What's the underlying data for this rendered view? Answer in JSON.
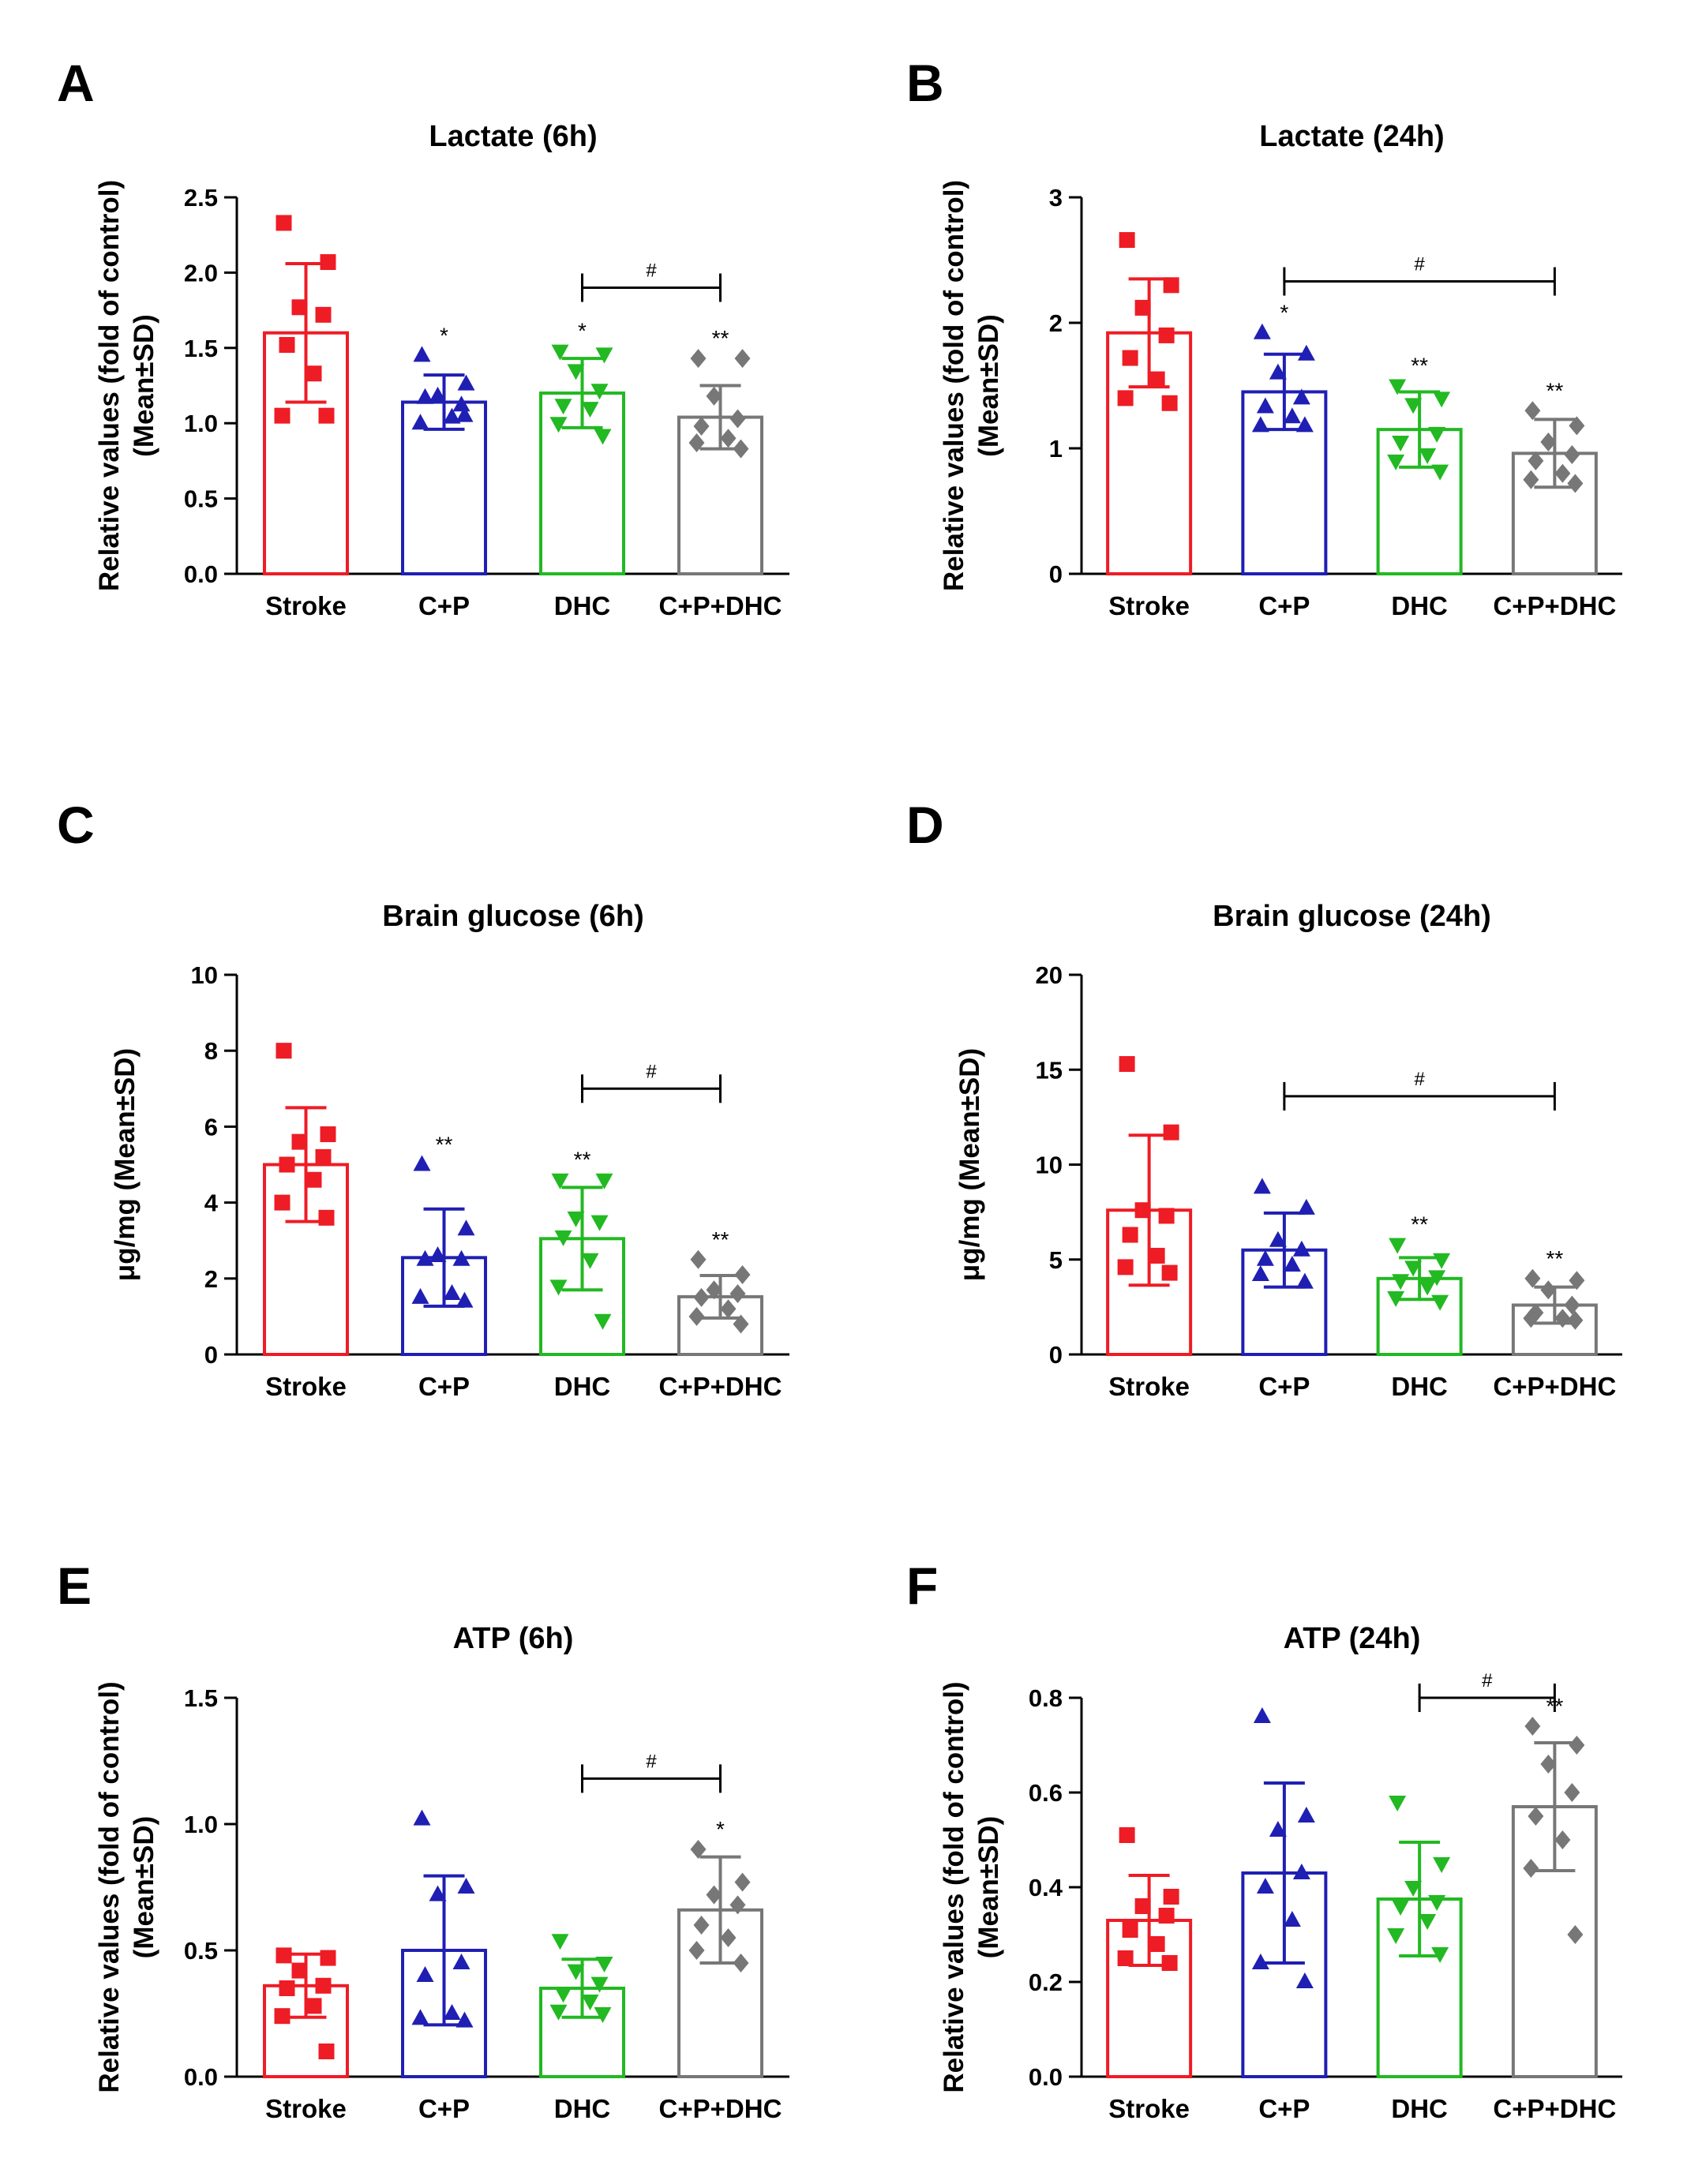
{
  "chart_data": [
    {
      "panel": "A",
      "type": "bar",
      "title": "Lactate (6h)",
      "ylabel": [
        "Relative values (fold of control)",
        "(Mean±SD)"
      ],
      "ylim": [
        0,
        2.5
      ],
      "yticks": [
        "0.0",
        "0.5",
        "1.0",
        "1.5",
        "2.0",
        "2.5"
      ],
      "categories": [
        "Stroke",
        "C+P",
        "DHC",
        "C+P+DHC"
      ],
      "series": [
        {
          "name": "Stroke",
          "color": "#ee1c25",
          "marker": "square",
          "mean": 1.6,
          "sd": 0.46,
          "points": [
            2.33,
            2.07,
            1.77,
            1.72,
            1.52,
            1.33,
            1.05,
            1.05
          ],
          "sig": ""
        },
        {
          "name": "C+P",
          "color": "#1f1fb4",
          "marker": "triangle",
          "mean": 1.14,
          "sd": 0.18,
          "points": [
            1.45,
            1.26,
            1.18,
            1.12,
            1.17,
            1.04,
            1.0,
            1.05
          ],
          "sig": "*"
        },
        {
          "name": "DHC",
          "color": "#22b922",
          "marker": "triangle-down",
          "mean": 1.2,
          "sd": 0.23,
          "points": [
            1.48,
            1.46,
            1.35,
            1.22,
            1.12,
            1.1,
            1.0,
            0.92
          ],
          "sig": "*"
        },
        {
          "name": "C+P+DHC",
          "color": "#777777",
          "marker": "diamond",
          "mean": 1.04,
          "sd": 0.21,
          "points": [
            1.43,
            1.43,
            1.18,
            1.03,
            0.98,
            0.9,
            0.87,
            0.83
          ],
          "sig": "**"
        }
      ],
      "bracket": {
        "from": "DHC",
        "to": "C+P+DHC",
        "y": 1.9,
        "label": "#"
      }
    },
    {
      "panel": "B",
      "type": "bar",
      "title": "Lactate (24h)",
      "ylabel": [
        "Relative values (fold of control)",
        "(Mean±SD)"
      ],
      "ylim": [
        0,
        3
      ],
      "yticks": [
        "0",
        "1",
        "2",
        "3"
      ],
      "categories": [
        "Stroke",
        "C+P",
        "DHC",
        "C+P+DHC"
      ],
      "series": [
        {
          "name": "Stroke",
          "color": "#ee1c25",
          "marker": "square",
          "mean": 1.92,
          "sd": 0.43,
          "points": [
            2.66,
            2.3,
            2.12,
            1.9,
            1.72,
            1.55,
            1.4,
            1.36
          ],
          "sig": ""
        },
        {
          "name": "C+P",
          "color": "#1f1fb4",
          "marker": "triangle",
          "mean": 1.45,
          "sd": 0.3,
          "points": [
            1.92,
            1.75,
            1.6,
            1.4,
            1.33,
            1.25,
            1.18,
            1.18
          ],
          "sig": "*"
        },
        {
          "name": "DHC",
          "color": "#22b922",
          "marker": "triangle-down",
          "mean": 1.15,
          "sd": 0.3,
          "points": [
            1.5,
            1.4,
            1.35,
            1.12,
            1.05,
            0.95,
            0.9,
            0.82
          ],
          "sig": "**"
        },
        {
          "name": "C+P+DHC",
          "color": "#777777",
          "marker": "diamond",
          "mean": 0.96,
          "sd": 0.27,
          "points": [
            1.3,
            1.18,
            1.05,
            0.95,
            0.9,
            0.8,
            0.75,
            0.72
          ],
          "sig": "**"
        }
      ],
      "bracket": {
        "from": "C+P",
        "to": "C+P+DHC",
        "y": 2.33,
        "label": "#"
      }
    },
    {
      "panel": "C",
      "type": "bar",
      "title": "Brain glucose (6h)",
      "ylabel": [
        "μg/mg (Mean±SD)"
      ],
      "ylim": [
        0,
        10
      ],
      "yticks": [
        "0",
        "2",
        "4",
        "6",
        "8",
        "10"
      ],
      "categories": [
        "Stroke",
        "C+P",
        "DHC",
        "C+P+DHC"
      ],
      "series": [
        {
          "name": "Stroke",
          "color": "#ee1c25",
          "marker": "square",
          "mean": 5.0,
          "sd": 1.5,
          "points": [
            8.0,
            5.8,
            5.6,
            5.2,
            5.0,
            4.6,
            4.0,
            3.6
          ],
          "sig": ""
        },
        {
          "name": "C+P",
          "color": "#1f1fb4",
          "marker": "triangle",
          "mean": 2.55,
          "sd": 1.28,
          "points": [
            5.0,
            3.3,
            2.6,
            2.5,
            2.5,
            1.6,
            1.5,
            1.4
          ],
          "sig": "**"
        },
        {
          "name": "DHC",
          "color": "#22b922",
          "marker": "triangle-down",
          "mean": 3.05,
          "sd": 1.35,
          "points": [
            4.6,
            4.6,
            3.6,
            3.5,
            3.1,
            2.5,
            1.8,
            0.9
          ],
          "sig": "**"
        },
        {
          "name": "C+P+DHC",
          "color": "#777777",
          "marker": "diamond",
          "mean": 1.52,
          "sd": 0.56,
          "points": [
            2.5,
            2.1,
            1.7,
            1.6,
            1.5,
            1.2,
            1.0,
            0.8
          ],
          "sig": "**"
        }
      ],
      "bracket": {
        "from": "DHC",
        "to": "C+P+DHC",
        "y": 7.0,
        "label": "#"
      }
    },
    {
      "panel": "D",
      "type": "bar",
      "title": "Brain glucose (24h)",
      "ylabel": [
        "μg/mg (Mean±SD)"
      ],
      "ylim": [
        0,
        20
      ],
      "yticks": [
        "0",
        "5",
        "10",
        "15",
        "20"
      ],
      "categories": [
        "Stroke",
        "C+P",
        "DHC",
        "C+P+DHC"
      ],
      "series": [
        {
          "name": "Stroke",
          "color": "#ee1c25",
          "marker": "square",
          "mean": 7.6,
          "sd": 3.95,
          "points": [
            15.3,
            11.7,
            7.6,
            7.3,
            6.3,
            5.2,
            4.6,
            4.3
          ],
          "sig": ""
        },
        {
          "name": "C+P",
          "color": "#1f1fb4",
          "marker": "triangle",
          "mean": 5.5,
          "sd": 1.95,
          "points": [
            8.8,
            7.7,
            6.0,
            5.5,
            5.0,
            4.7,
            4.2,
            3.8
          ],
          "sig": ""
        },
        {
          "name": "DHC",
          "color": "#22b922",
          "marker": "triangle-down",
          "mean": 4.0,
          "sd": 1.1,
          "points": [
            5.8,
            5.0,
            4.6,
            4.1,
            3.9,
            3.6,
            3.0,
            2.8
          ],
          "sig": "**"
        },
        {
          "name": "C+P+DHC",
          "color": "#777777",
          "marker": "diamond",
          "mean": 2.6,
          "sd": 0.95,
          "points": [
            4.0,
            3.9,
            3.4,
            2.6,
            2.2,
            1.9,
            1.9,
            1.8
          ],
          "sig": "**"
        }
      ],
      "bracket": {
        "from": "C+P",
        "to": "C+P+DHC",
        "y": 13.6,
        "label": "#"
      }
    },
    {
      "panel": "E",
      "type": "bar",
      "title": "ATP (6h)",
      "ylabel": [
        "Relative values (fold of control)",
        "(Mean±SD)"
      ],
      "ylim": [
        0,
        1.5
      ],
      "yticks": [
        "0.0",
        "0.5",
        "1.0",
        "1.5"
      ],
      "categories": [
        "Stroke",
        "C+P",
        "DHC",
        "C+P+DHC"
      ],
      "series": [
        {
          "name": "Stroke",
          "color": "#ee1c25",
          "marker": "square",
          "mean": 0.36,
          "sd": 0.125,
          "points": [
            0.48,
            0.47,
            0.42,
            0.36,
            0.35,
            0.28,
            0.24,
            0.1
          ],
          "sig": ""
        },
        {
          "name": "C+P",
          "color": "#1f1fb4",
          "marker": "triangle",
          "mean": 0.5,
          "sd": 0.295,
          "points": [
            1.02,
            0.75,
            0.72,
            0.45,
            0.4,
            0.25,
            0.23,
            0.22
          ],
          "sig": ""
        },
        {
          "name": "DHC",
          "color": "#22b922",
          "marker": "triangle-down",
          "mean": 0.35,
          "sd": 0.115,
          "points": [
            0.54,
            0.45,
            0.42,
            0.37,
            0.33,
            0.3,
            0.26,
            0.25
          ],
          "sig": ""
        },
        {
          "name": "C+P+DHC",
          "color": "#777777",
          "marker": "diamond",
          "mean": 0.66,
          "sd": 0.21,
          "points": [
            0.9,
            0.77,
            0.72,
            0.68,
            0.6,
            0.55,
            0.5,
            0.45
          ],
          "sig": "*"
        }
      ],
      "bracket": {
        "from": "DHC",
        "to": "C+P+DHC",
        "y": 1.18,
        "label": "#"
      }
    },
    {
      "panel": "F",
      "type": "bar",
      "title": "ATP (24h)",
      "ylabel": [
        "Relative values (fold of control)",
        "(Mean±SD)"
      ],
      "ylim": [
        0,
        0.8
      ],
      "yticks": [
        "0.0",
        "0.2",
        "0.4",
        "0.6",
        "0.8"
      ],
      "categories": [
        "Stroke",
        "C+P",
        "DHC",
        "C+P+DHC"
      ],
      "series": [
        {
          "name": "Stroke",
          "color": "#ee1c25",
          "marker": "square",
          "mean": 0.33,
          "sd": 0.095,
          "points": [
            0.51,
            0.38,
            0.36,
            0.34,
            0.31,
            0.28,
            0.25,
            0.24
          ],
          "sig": ""
        },
        {
          "name": "C+P",
          "color": "#1f1fb4",
          "marker": "triangle",
          "mean": 0.43,
          "sd": 0.19,
          "points": [
            0.76,
            0.55,
            0.52,
            0.43,
            0.4,
            0.33,
            0.24,
            0.2
          ],
          "sig": ""
        },
        {
          "name": "DHC",
          "color": "#22b922",
          "marker": "triangle-down",
          "mean": 0.375,
          "sd": 0.12,
          "points": [
            0.58,
            0.45,
            0.4,
            0.37,
            0.36,
            0.33,
            0.3,
            0.26
          ],
          "sig": ""
        },
        {
          "name": "C+P+DHC",
          "color": "#777777",
          "marker": "diamond",
          "mean": 0.57,
          "sd": 0.135,
          "points": [
            0.74,
            0.7,
            0.66,
            0.6,
            0.55,
            0.5,
            0.44,
            0.3
          ],
          "sig": "**"
        }
      ],
      "bracket": {
        "from": "DHC",
        "to": "C+P+DHC",
        "y": 0.8,
        "label": "#"
      }
    }
  ]
}
